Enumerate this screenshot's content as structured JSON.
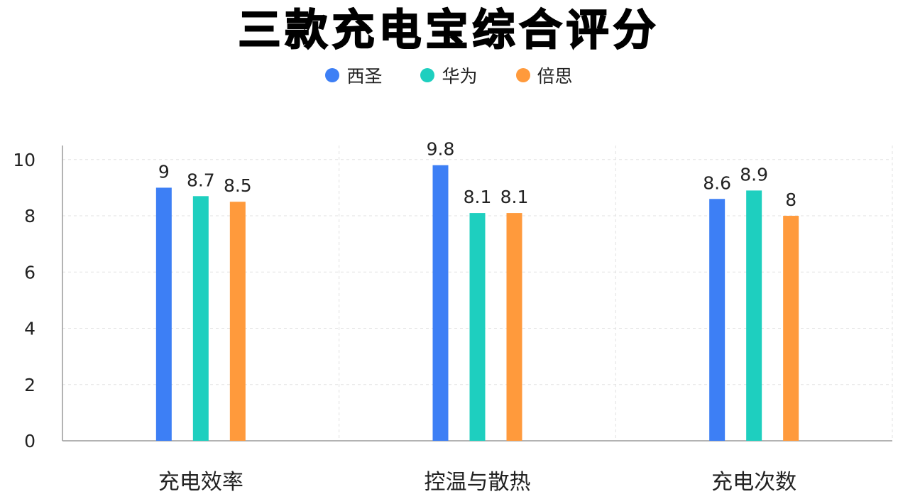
{
  "chart_data": {
    "type": "bar",
    "title": "三款充电宝综合评分",
    "categories": [
      "充电效率",
      "控温与散热",
      "充电次数"
    ],
    "series": [
      {
        "name": "西圣",
        "color": "#3d7ff5",
        "values": [
          9,
          9.8,
          8.6
        ]
      },
      {
        "name": "华为",
        "color": "#1ecfbf",
        "values": [
          8.7,
          8.1,
          8.9
        ]
      },
      {
        "name": "倍思",
        "color": "#ff9a3c",
        "values": [
          8.5,
          8.1,
          8
        ]
      }
    ],
    "yticks": [
      "0",
      "2",
      "4",
      "6",
      "8",
      "10"
    ],
    "ylim": [
      0,
      10.5
    ],
    "legend_position": "top-center",
    "grid": true
  }
}
